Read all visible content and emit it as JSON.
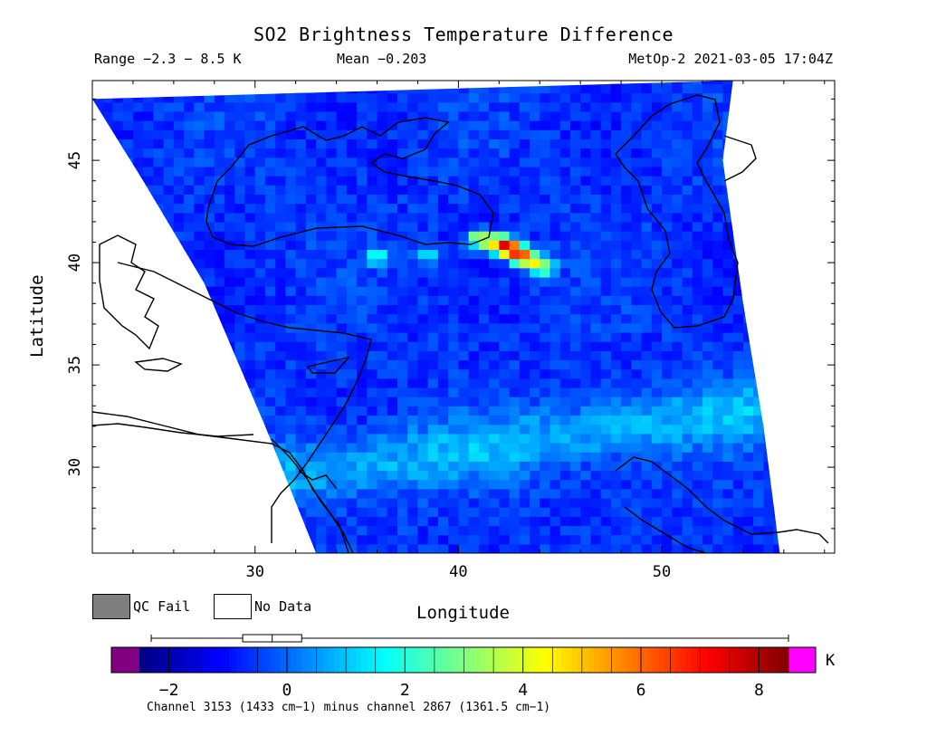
{
  "header": {
    "title": "SO2 Brightness Temperature Difference",
    "range": "Range −2.3 − 8.5 K",
    "mean": "Mean −0.203",
    "satellite_time": "MetOp-2 2021-03-05 17:04Z"
  },
  "legend": {
    "qc_fail": "QC Fail",
    "no_data": "No Data",
    "qc_fail_color": "#7f7f7f",
    "no_data_color": "#ffffff"
  },
  "colorbar": {
    "unit": "K",
    "ticks": [
      "−2",
      "0",
      "2",
      "4",
      "6",
      "8"
    ],
    "tick_values": [
      -2,
      0,
      2,
      4,
      6,
      8
    ],
    "min": -2.5,
    "max": 8.5,
    "under_color": "#800080",
    "over_color": "#ff00ff",
    "colormap": "jet",
    "boxplot": {
      "min": -2.3,
      "q1": -0.75,
      "median": -0.25,
      "q3": 0.25,
      "max": 8.5
    }
  },
  "footer": {
    "channels": "Channel 3153 (1433 cm−1) minus channel 2867 (1361.5 cm−1)"
  },
  "chart_data": {
    "type": "heatmap",
    "title": "SO2 Brightness Temperature Difference",
    "xlabel": "Longitude",
    "ylabel": "Latitude",
    "xlim": [
      22,
      58.5
    ],
    "ylim": [
      25.8,
      48.9
    ],
    "x_ticks": [
      30,
      40,
      50
    ],
    "y_ticks": [
      30,
      35,
      40,
      45
    ],
    "x_tick_labels": [
      "30",
      "40",
      "50"
    ],
    "y_tick_labels": [
      "30",
      "35",
      "40",
      "45"
    ],
    "swath": {
      "left_edge": [
        [
          22.0,
          48.0
        ],
        [
          24.5,
          44.0
        ],
        [
          27.5,
          39.0
        ],
        [
          30.5,
          32.0
        ],
        [
          33.0,
          25.8
        ]
      ],
      "right_edge": [
        [
          53.5,
          48.9
        ],
        [
          53.0,
          45.0
        ],
        [
          54.0,
          38.0
        ],
        [
          55.0,
          32.0
        ],
        [
          55.8,
          25.8
        ]
      ]
    },
    "hotspots": [
      {
        "lon": 42.7,
        "lat": 40.6,
        "value": 8.0
      },
      {
        "lon": 42.2,
        "lat": 40.9,
        "value": 7.5
      },
      {
        "lon": 43.2,
        "lat": 40.3,
        "value": 6.5
      },
      {
        "lon": 41.6,
        "lat": 41.0,
        "value": 4.8
      },
      {
        "lon": 43.8,
        "lat": 40.0,
        "value": 4.5
      },
      {
        "lon": 41.0,
        "lat": 41.2,
        "value": 4.0
      },
      {
        "lon": 44.2,
        "lat": 39.8,
        "value": 3.2
      },
      {
        "lon": 36.0,
        "lat": 40.3,
        "value": 2.2
      },
      {
        "lon": 38.5,
        "lat": 40.4,
        "value": 1.6
      }
    ],
    "background_range": [
      -2.3,
      1.5
    ],
    "mean": -0.203,
    "grid": false
  }
}
